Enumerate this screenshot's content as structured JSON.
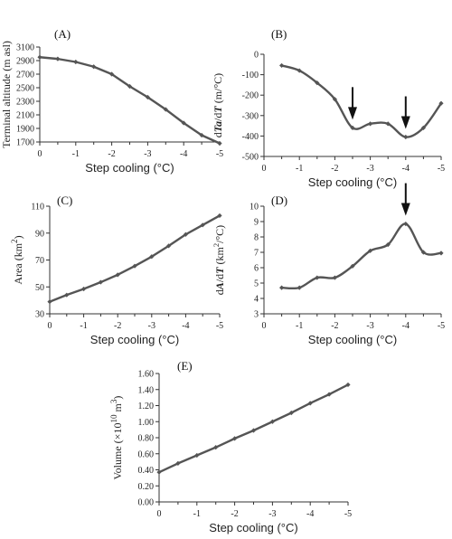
{
  "chart_data": [
    {
      "panel": "(A)",
      "type": "line",
      "ylabel": "Terminal altitude (m asl)",
      "xlabel": "Step cooling (°C)",
      "xlim": [
        0,
        -5
      ],
      "ylim": [
        1700,
        3100
      ],
      "x_ticks": [
        0,
        -1,
        -2,
        -3,
        -4,
        -5
      ],
      "y_ticks": [
        1700,
        1900,
        2100,
        2300,
        2500,
        2700,
        2900,
        3100
      ],
      "x": [
        0,
        -0.5,
        -1,
        -1.5,
        -2,
        -2.5,
        -3,
        -3.5,
        -4,
        -4.5,
        -5
      ],
      "y": [
        2950,
        2925,
        2880,
        2810,
        2700,
        2520,
        2360,
        2180,
        1980,
        1800,
        1680
      ],
      "smooth": false
    },
    {
      "panel": "(B)",
      "type": "line",
      "ylabel_prefix": "d",
      "ylabel_italic": "Ta",
      "ylabel_mid": "/d",
      "ylabel_italic2": "T",
      "ylabel_unit": " (m/°C)",
      "xlabel": "Step cooling (°C)",
      "xlim": [
        0,
        -5
      ],
      "ylim": [
        -500,
        0
      ],
      "x_ticks": [
        0,
        -1,
        -2,
        -3,
        -4,
        -5
      ],
      "y_ticks": [
        -500,
        -400,
        -300,
        -200,
        -100,
        0
      ],
      "x": [
        -0.5,
        -1,
        -1.5,
        -2,
        -2.5,
        -3,
        -3.5,
        -4,
        -4.5,
        -5
      ],
      "y": [
        -55,
        -80,
        -140,
        -220,
        -360,
        -340,
        -340,
        -405,
        -360,
        -240
      ],
      "smooth": true,
      "arrows_at_x": [
        -2.5,
        -4
      ]
    },
    {
      "panel": "(C)",
      "type": "line",
      "ylabel": "Area (km",
      "ylabel_sup": "2",
      "ylabel_end": ")",
      "xlabel": "Step cooling (°C)",
      "xlim": [
        0,
        -5
      ],
      "ylim": [
        30,
        110
      ],
      "x_ticks": [
        0,
        -1,
        -2,
        -3,
        -4,
        -5
      ],
      "y_ticks": [
        30,
        50,
        70,
        90,
        110
      ],
      "x": [
        0,
        -0.5,
        -1,
        -1.5,
        -2,
        -2.5,
        -3,
        -3.5,
        -4,
        -4.5,
        -5
      ],
      "y": [
        39,
        44,
        48.5,
        53.5,
        59,
        65.5,
        72.5,
        80.5,
        89,
        96,
        103
      ],
      "smooth": false
    },
    {
      "panel": "(D)",
      "type": "line",
      "ylabel_prefix": "d",
      "ylabel_italic": "A",
      "ylabel_mid": "/d",
      "ylabel_italic2": "T",
      "ylabel_unit": " (km",
      "ylabel_sup": "2",
      "ylabel_end": "/°C)",
      "xlabel": "Step cooling (°C)",
      "xlim": [
        0,
        -5
      ],
      "ylim": [
        3,
        10
      ],
      "x_ticks": [
        0,
        -1,
        -2,
        -3,
        -4,
        -5
      ],
      "y_ticks": [
        3,
        4,
        5,
        6,
        7,
        8,
        9,
        10
      ],
      "x": [
        -0.5,
        -1,
        -1.5,
        -2,
        -2.5,
        -3,
        -3.5,
        -4,
        -4.5,
        -5
      ],
      "y": [
        4.7,
        4.7,
        5.35,
        5.35,
        6.1,
        7.1,
        7.5,
        8.85,
        7.0,
        6.95
      ],
      "smooth": true,
      "arrows_at_x": [
        -4
      ]
    },
    {
      "panel": "(E)",
      "type": "line",
      "ylabel": "Volume (×10",
      "ylabel_sup": "10",
      "ylabel_mid": " m",
      "ylabel_sup2": "3",
      "ylabel_end": ")",
      "xlabel": "Step cooling (°C)",
      "xlim": [
        0,
        -5
      ],
      "ylim": [
        0,
        1.6
      ],
      "x_ticks": [
        0,
        -1,
        -2,
        -3,
        -4,
        -5
      ],
      "y_ticks": [
        0.0,
        0.2,
        0.4,
        0.6,
        0.8,
        1.0,
        1.2,
        1.4,
        1.6
      ],
      "y_tick_decimals": 2,
      "x": [
        0,
        -0.5,
        -1,
        -1.5,
        -2,
        -2.5,
        -3,
        -3.5,
        -4,
        -4.5,
        -5
      ],
      "y": [
        0.37,
        0.48,
        0.58,
        0.68,
        0.79,
        0.89,
        1.0,
        1.11,
        1.23,
        1.34,
        1.46
      ],
      "smooth": false
    }
  ]
}
